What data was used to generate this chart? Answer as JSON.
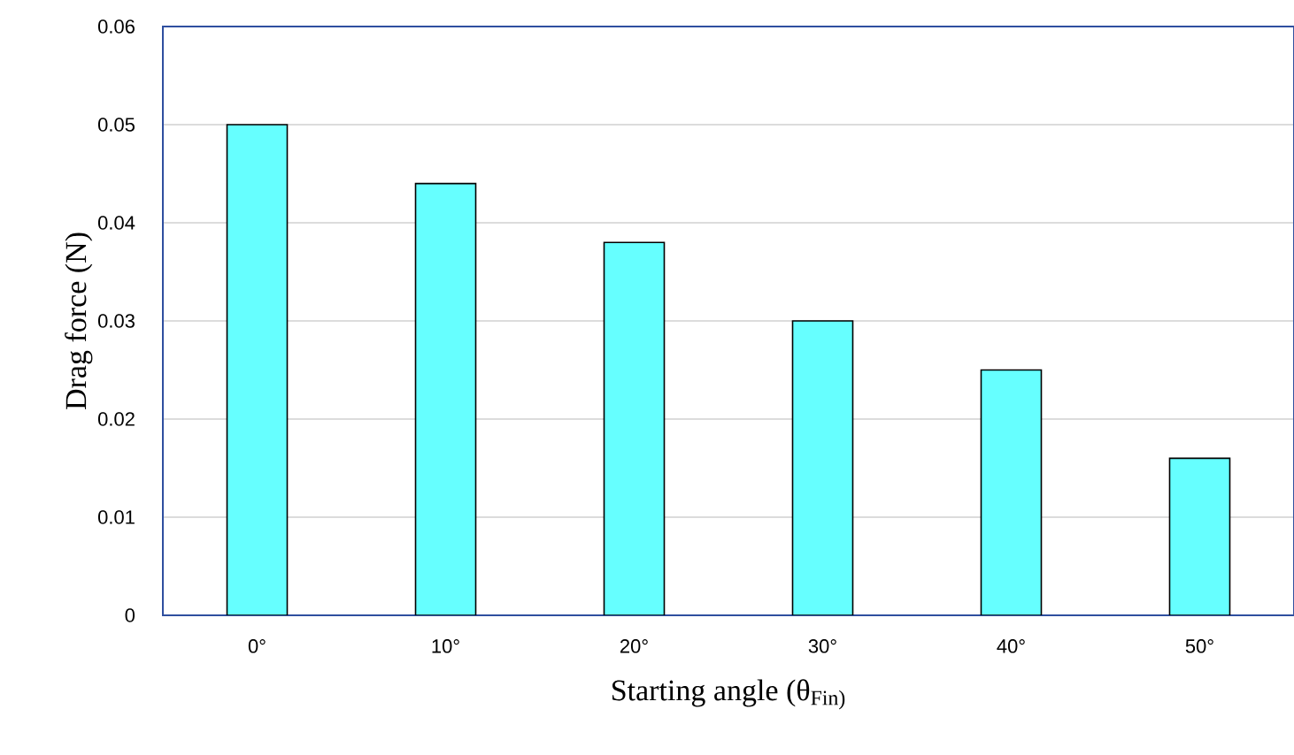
{
  "chart_data": {
    "type": "bar",
    "xlabel": "Starting angle (θ$_{Fin)}$",
    "ylabel": "Drag force (N)",
    "categories": [
      "0°",
      "10°",
      "20°",
      "30°",
      "40°",
      "50°"
    ],
    "values": [
      0.05,
      0.044,
      0.038,
      0.03,
      0.025,
      0.016
    ],
    "color": "#66ffff",
    "ylim": [
      0,
      0.06
    ],
    "yticks": [
      0,
      0.01,
      0.02,
      0.03,
      0.04,
      0.05,
      0.06
    ],
    "grid": "y"
  }
}
